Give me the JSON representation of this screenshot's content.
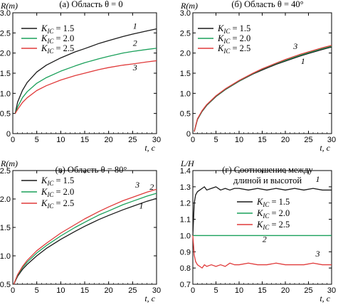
{
  "chart_data": [
    {
      "type": "line",
      "title": "(а) Область θ = 0",
      "ylabel": "R(m)",
      "xlabel": "t, с",
      "xlim": [
        0,
        30
      ],
      "ylim": [
        0,
        3.0
      ],
      "xticks": [
        "0",
        "5",
        "10",
        "15",
        "20",
        "25",
        "30"
      ],
      "yticks": [
        "0",
        "0.5",
        "1.0",
        "1.5",
        "2.0",
        "2.5",
        "3.0"
      ],
      "legend_position": "top-left",
      "series": [
        {
          "name": "K_IC = 1.5",
          "color": "#1a1a1a",
          "label": "1",
          "x": [
            0.5,
            1,
            2,
            3,
            5,
            7,
            10,
            13,
            15,
            18,
            20,
            23,
            25,
            28,
            30
          ],
          "y": [
            0.5,
            0.78,
            1.07,
            1.27,
            1.53,
            1.7,
            1.88,
            2.03,
            2.11,
            2.24,
            2.31,
            2.41,
            2.47,
            2.55,
            2.6
          ]
        },
        {
          "name": "K_IC = 2.0",
          "color": "#1aa05a",
          "label": "2",
          "x": [
            0.5,
            1,
            2,
            3,
            5,
            7,
            10,
            13,
            15,
            18,
            20,
            23,
            25,
            28,
            30
          ],
          "y": [
            0.5,
            0.66,
            0.89,
            1.04,
            1.25,
            1.39,
            1.55,
            1.68,
            1.76,
            1.86,
            1.92,
            2.0,
            2.04,
            2.09,
            2.12
          ]
        },
        {
          "name": "K_IC = 2.5",
          "color": "#e03a3a",
          "label": "3",
          "x": [
            0.5,
            1,
            2,
            3,
            5,
            7,
            10,
            13,
            15,
            18,
            20,
            23,
            25,
            28,
            30
          ],
          "y": [
            0.5,
            0.6,
            0.77,
            0.89,
            1.07,
            1.19,
            1.33,
            1.44,
            1.5,
            1.59,
            1.64,
            1.7,
            1.73,
            1.78,
            1.81
          ]
        }
      ],
      "curve_labels": [
        {
          "text": "1",
          "x": 25.5,
          "y": 2.6
        },
        {
          "text": "2",
          "x": 25.5,
          "y": 2.18
        },
        {
          "text": "3",
          "x": 25.5,
          "y": 1.57
        }
      ]
    },
    {
      "type": "line",
      "title": "(б) Область θ = 40°",
      "ylabel": "R(m)",
      "xlabel": "t, с",
      "xlim": [
        0,
        30
      ],
      "ylim": [
        0,
        3.0
      ],
      "xticks": [
        "0",
        "5",
        "10",
        "15",
        "20",
        "25",
        "30"
      ],
      "yticks": [
        "0",
        "0.5",
        "1.0",
        "1.5",
        "2.0",
        "2.5",
        "3.0"
      ],
      "legend_position": "top-left",
      "series": [
        {
          "name": "K_IC = 1.5",
          "color": "#1a1a1a",
          "label": "1",
          "x": [
            0.3,
            1,
            2,
            3,
            5,
            7,
            10,
            13,
            15,
            18,
            20,
            23,
            25,
            28,
            30
          ],
          "y": [
            0.05,
            0.35,
            0.55,
            0.7,
            0.92,
            1.09,
            1.3,
            1.48,
            1.58,
            1.72,
            1.8,
            1.92,
            1.99,
            2.09,
            2.15
          ]
        },
        {
          "name": "K_IC = 2.0",
          "color": "#1aa05a",
          "label": "2",
          "x": [
            0.3,
            1,
            2,
            3,
            5,
            7,
            10,
            13,
            15,
            18,
            20,
            23,
            25,
            28,
            30
          ],
          "y": [
            0.05,
            0.36,
            0.56,
            0.71,
            0.93,
            1.1,
            1.31,
            1.49,
            1.6,
            1.74,
            1.82,
            1.94,
            2.01,
            2.11,
            2.17
          ]
        },
        {
          "name": "K_IC = 2.5",
          "color": "#e03a3a",
          "label": "3",
          "x": [
            0.3,
            1,
            2,
            3,
            5,
            7,
            10,
            13,
            15,
            18,
            20,
            23,
            25,
            28,
            30
          ],
          "y": [
            0.05,
            0.37,
            0.57,
            0.72,
            0.94,
            1.11,
            1.32,
            1.5,
            1.61,
            1.75,
            1.84,
            1.96,
            2.03,
            2.13,
            2.19
          ]
        }
      ],
      "curve_labels": [
        {
          "text": "1",
          "x": 23.8,
          "y": 1.73
        },
        {
          "text": "3",
          "x": 22.2,
          "y": 2.1
        }
      ]
    },
    {
      "type": "line",
      "title": "(в) Область θ = 80°",
      "ylabel": "R(m)",
      "xlabel": "t, с",
      "xlim": [
        0,
        30
      ],
      "ylim": [
        0.5,
        2.5
      ],
      "xticks": [
        "0",
        "5",
        "10",
        "15",
        "20",
        "25",
        "30"
      ],
      "yticks": [
        "0.5",
        "1.0",
        "1.5",
        "2.0",
        "2.5"
      ],
      "legend_position": "top-left",
      "series": [
        {
          "name": "K_IC = 1.5",
          "color": "#1a1a1a",
          "label": "1",
          "x": [
            0.2,
            1,
            2,
            3,
            5,
            7,
            10,
            13,
            15,
            18,
            20,
            23,
            25,
            28,
            30
          ],
          "y": [
            0.5,
            0.64,
            0.76,
            0.85,
            1.0,
            1.13,
            1.29,
            1.43,
            1.52,
            1.64,
            1.71,
            1.81,
            1.87,
            1.96,
            2.01
          ]
        },
        {
          "name": "K_IC = 2.0",
          "color": "#1aa05a",
          "label": "2",
          "x": [
            0.2,
            1,
            2,
            3,
            5,
            7,
            10,
            13,
            15,
            18,
            20,
            23,
            25,
            28,
            30
          ],
          "y": [
            0.5,
            0.66,
            0.79,
            0.89,
            1.05,
            1.18,
            1.35,
            1.5,
            1.59,
            1.72,
            1.79,
            1.9,
            1.96,
            2.05,
            2.1
          ]
        },
        {
          "name": "K_IC = 2.5",
          "color": "#e03a3a",
          "label": "3",
          "x": [
            0.2,
            1,
            2,
            3,
            5,
            7,
            10,
            13,
            15,
            18,
            20,
            23,
            25,
            28,
            30
          ],
          "y": [
            0.5,
            0.67,
            0.81,
            0.92,
            1.09,
            1.22,
            1.4,
            1.55,
            1.65,
            1.78,
            1.86,
            1.97,
            2.03,
            2.12,
            2.17
          ]
        }
      ],
      "curve_labels": [
        {
          "text": "3",
          "x": 26.0,
          "y": 2.2
        },
        {
          "text": "2",
          "x": 29.0,
          "y": 2.16
        },
        {
          "text": "1",
          "x": 26.8,
          "y": 1.83
        }
      ]
    },
    {
      "type": "line",
      "title": "(г) Соотношение между\nдлиной и высотой",
      "ylabel": "L/H",
      "xlabel": "t, с",
      "xlim": [
        0,
        30
      ],
      "ylim": [
        0.7,
        1.4
      ],
      "xticks": [
        "0",
        "5",
        "10",
        "15",
        "20",
        "25",
        "30"
      ],
      "yticks": [
        "0.7",
        "0.8",
        "0.9",
        "1.0",
        "1.1",
        "1.2",
        "1.3",
        "1.4"
      ],
      "legend_position": "right",
      "series": [
        {
          "name": "K_IC = 1.5",
          "color": "#1a1a1a",
          "label": "1",
          "x": [
            0,
            0.3,
            0.6,
            1,
            1.5,
            2,
            2.5,
            3,
            4,
            5,
            6,
            7,
            8,
            9,
            10,
            12,
            14,
            16,
            18,
            20,
            22,
            24,
            26,
            28,
            30
          ],
          "y": [
            1.0,
            1.2,
            1.25,
            1.27,
            1.28,
            1.29,
            1.3,
            1.28,
            1.29,
            1.3,
            1.28,
            1.29,
            1.28,
            1.29,
            1.29,
            1.28,
            1.29,
            1.28,
            1.29,
            1.28,
            1.29,
            1.28,
            1.29,
            1.28,
            1.28
          ]
        },
        {
          "name": "K_IC = 2.0",
          "color": "#1aa05a",
          "label": "2",
          "x": [
            0,
            5,
            10,
            15,
            20,
            25,
            30
          ],
          "y": [
            1.0,
            1.0,
            1.0,
            1.0,
            1.0,
            1.0,
            1.0
          ]
        },
        {
          "name": "K_IC = 2.5",
          "color": "#e03a3a",
          "label": "3",
          "x": [
            0,
            0.3,
            0.6,
            1,
            1.5,
            2,
            2.5,
            3,
            4,
            5,
            6,
            7,
            8,
            9,
            10,
            12,
            14,
            16,
            18,
            20,
            22,
            24,
            26,
            28,
            30
          ],
          "y": [
            1.0,
            0.88,
            0.84,
            0.82,
            0.81,
            0.8,
            0.82,
            0.81,
            0.82,
            0.81,
            0.82,
            0.81,
            0.83,
            0.82,
            0.82,
            0.83,
            0.82,
            0.82,
            0.83,
            0.82,
            0.82,
            0.82,
            0.83,
            0.82,
            0.82
          ]
        }
      ],
      "curve_labels": [
        {
          "text": "1",
          "x": 27.0,
          "y": 1.33
        },
        {
          "text": "2",
          "x": 15.5,
          "y": 0.96
        },
        {
          "text": "3",
          "x": 27.0,
          "y": 0.87
        }
      ]
    }
  ]
}
